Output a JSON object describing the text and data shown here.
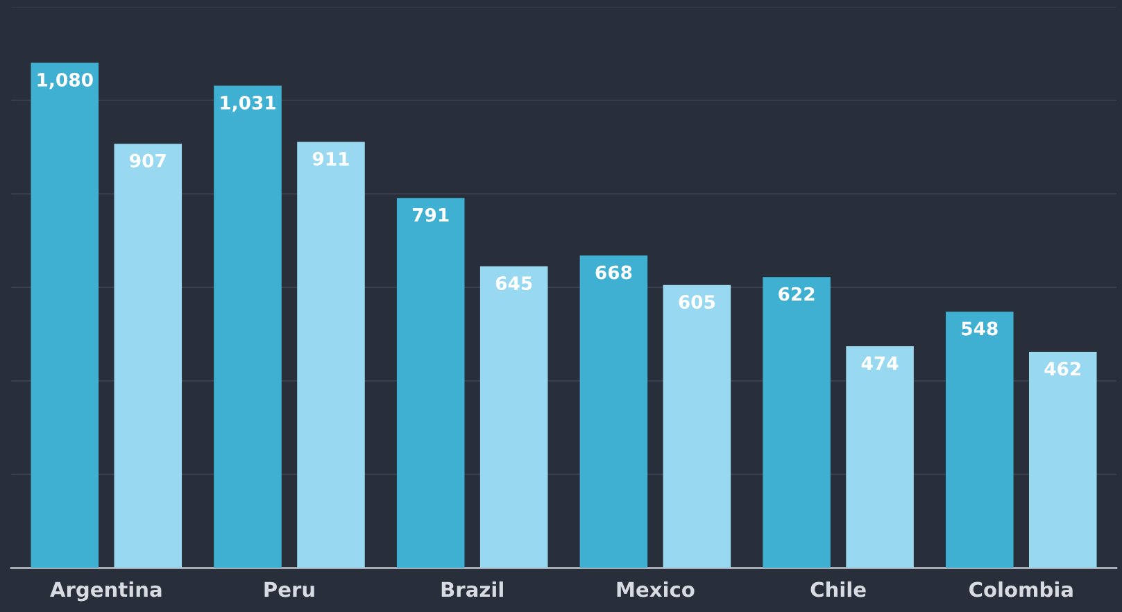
{
  "chart_data": {
    "type": "bar",
    "categories": [
      "Argentina",
      "Peru",
      "Brazil",
      "Mexico",
      "Chile",
      "Colombia"
    ],
    "series": [
      {
        "color": "#40b0d2",
        "values": [
          1080,
          1031,
          791,
          668,
          622,
          548
        ],
        "value_labels": [
          "1,080",
          "1,031",
          "791",
          "668",
          "622",
          "548"
        ]
      },
      {
        "color": "#98d8f0",
        "values": [
          907,
          911,
          645,
          605,
          474,
          462
        ],
        "value_labels": [
          "907",
          "911",
          "645",
          "605",
          "474",
          "462"
        ]
      }
    ],
    "ylim": [
      0,
      1200
    ],
    "yticks": [
      {
        "value": 0,
        "label": null
      },
      {
        "value": 200,
        "label": null
      },
      {
        "value": 400,
        "label": null
      },
      {
        "value": 600,
        "label": null
      },
      {
        "value": 800,
        "label": null
      },
      {
        "value": 1000,
        "label": null
      },
      {
        "value": 1200,
        "label": null
      }
    ],
    "grid": "y",
    "tick_labels": "x"
  }
}
